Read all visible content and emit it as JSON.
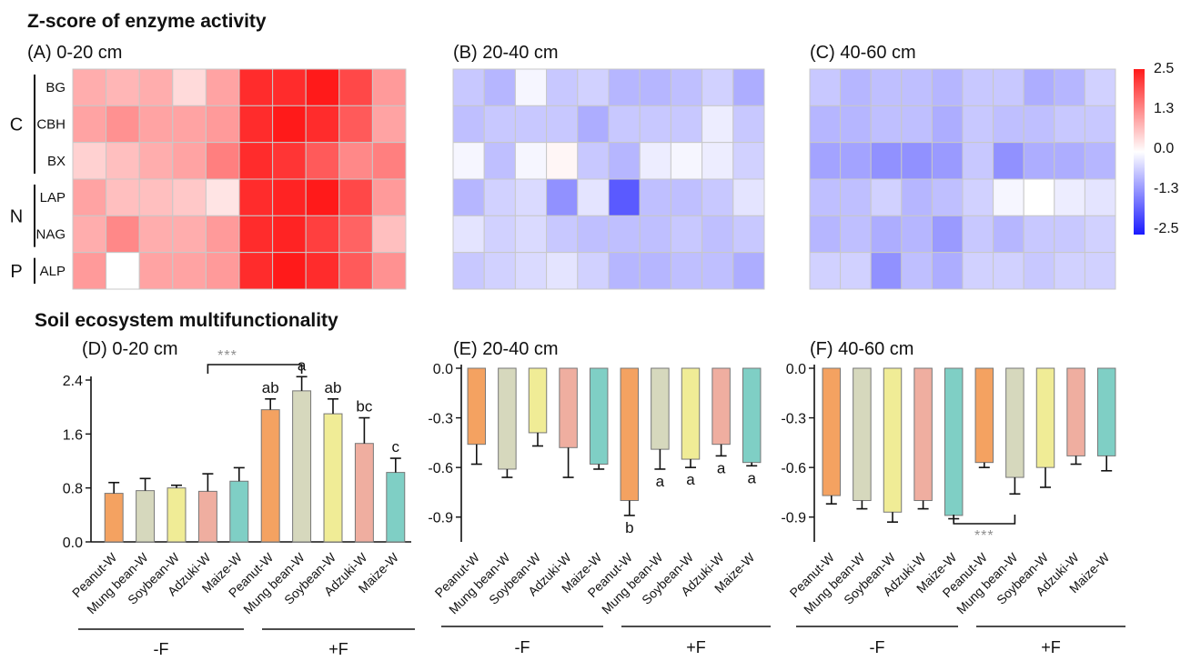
{
  "titles": {
    "enzyme_section": "Z-score of enzyme activity",
    "multi_section": "Soil ecosystem multifunctionality"
  },
  "panels": {
    "A": "(A) 0-20 cm",
    "B": "(B) 20-40 cm",
    "C": "(C) 40-60 cm",
    "D": "(D) 0-20 cm",
    "E": "(E) 20-40 cm",
    "F": "(F) 40-60 cm"
  },
  "enzymes": [
    "BG",
    "CBH",
    "BX",
    "LAP",
    "NAG",
    "ALP"
  ],
  "nutrient_groups": [
    {
      "label": "C",
      "rows": [
        0,
        2
      ]
    },
    {
      "label": "N",
      "rows": [
        3,
        4
      ]
    },
    {
      "label": "P",
      "rows": [
        5,
        5
      ]
    }
  ],
  "categories": [
    "Peanut-W",
    "Mung bean-W",
    "Soybean-W",
    "Adzuki-W",
    "Maize-W",
    "Peanut-W",
    "Mung bean-W",
    "Soybean-W",
    "Adzuki-W",
    "Maize-W"
  ],
  "treatment_groups": [
    "-F",
    "+F"
  ],
  "colors": {
    "crop": [
      "#f4a261",
      "#d6d8bd",
      "#f0ec96",
      "#efaea0",
      "#7fcfc5"
    ],
    "heat_low": "#1a1aff",
    "heat_mid": "#ffffff",
    "heat_high": "#ff1a1a"
  },
  "colorbar": {
    "ticks": [
      "2.5",
      "1.3",
      "0.0",
      "-1.3",
      "-2.5"
    ],
    "range": [
      -2.5,
      2.5
    ]
  },
  "chart_data": [
    {
      "type": "heatmap",
      "panel": "A",
      "rows": [
        "BG",
        "CBH",
        "BX",
        "LAP",
        "NAG",
        "ALP"
      ],
      "values": [
        [
          0.9,
          0.8,
          0.9,
          0.4,
          1.0,
          2.3,
          2.3,
          2.5,
          2.0,
          1.1
        ],
        [
          1.0,
          1.2,
          1.0,
          1.0,
          1.1,
          2.3,
          2.5,
          2.3,
          1.8,
          1.0
        ],
        [
          0.5,
          0.7,
          0.9,
          1.0,
          1.4,
          2.3,
          2.2,
          1.8,
          1.3,
          1.4
        ],
        [
          1.0,
          0.7,
          0.7,
          0.6,
          0.3,
          2.3,
          2.4,
          2.5,
          2.0,
          1.1
        ],
        [
          0.9,
          1.3,
          0.9,
          0.9,
          1.1,
          2.3,
          2.4,
          2.1,
          1.7,
          0.7
        ],
        [
          1.1,
          0.0,
          1.0,
          1.0,
          1.1,
          2.3,
          2.5,
          2.3,
          1.8,
          1.2
        ]
      ]
    },
    {
      "type": "heatmap",
      "panel": "B",
      "rows": [
        "BG",
        "CBH",
        "BX",
        "LAP",
        "NAG",
        "ALP"
      ],
      "values": [
        [
          -0.6,
          -0.8,
          -0.1,
          -0.6,
          -0.5,
          -0.8,
          -0.8,
          -0.7,
          -0.5,
          -0.9
        ],
        [
          -0.7,
          -0.6,
          -0.6,
          -0.6,
          -0.9,
          -0.6,
          -0.6,
          -0.6,
          -0.2,
          -0.6
        ],
        [
          -0.1,
          -0.7,
          -0.1,
          0.1,
          -0.6,
          -0.8,
          -0.2,
          -0.1,
          -0.2,
          -0.5
        ],
        [
          -0.8,
          -0.5,
          -0.4,
          -1.2,
          -0.3,
          -1.8,
          -0.7,
          -0.7,
          -0.6,
          -0.3
        ],
        [
          -0.3,
          -0.5,
          -0.4,
          -0.6,
          -0.7,
          -0.7,
          -0.7,
          -0.6,
          -0.7,
          -0.6
        ],
        [
          -0.6,
          -0.5,
          -0.4,
          -0.3,
          -0.5,
          -0.8,
          -0.8,
          -0.7,
          -0.7,
          -0.9
        ]
      ]
    },
    {
      "type": "heatmap",
      "panel": "C",
      "rows": [
        "BG",
        "CBH",
        "BX",
        "LAP",
        "NAG",
        "ALP"
      ],
      "values": [
        [
          -0.6,
          -0.8,
          -0.7,
          -0.7,
          -0.8,
          -0.6,
          -0.6,
          -0.9,
          -0.8,
          -0.5
        ],
        [
          -0.8,
          -0.8,
          -0.7,
          -0.7,
          -0.9,
          -0.6,
          -0.7,
          -0.7,
          -0.6,
          -0.6
        ],
        [
          -1.0,
          -1.0,
          -1.2,
          -1.2,
          -1.1,
          -0.6,
          -1.2,
          -0.9,
          -0.9,
          -0.8
        ],
        [
          -0.7,
          -0.7,
          -0.5,
          -0.8,
          -0.7,
          -0.5,
          -0.1,
          0.0,
          -0.2,
          -0.3
        ],
        [
          -0.8,
          -0.7,
          -0.9,
          -0.8,
          -1.1,
          -0.6,
          -0.8,
          -0.6,
          -0.6,
          -0.5
        ],
        [
          -0.5,
          -0.5,
          -1.2,
          -0.7,
          -0.9,
          -0.5,
          -0.5,
          -0.6,
          -0.5,
          -0.5
        ]
      ]
    },
    {
      "type": "bar",
      "panel": "D",
      "values": [
        0.72,
        0.76,
        0.8,
        0.75,
        0.9,
        1.96,
        2.24,
        1.9,
        1.46,
        1.03
      ],
      "errors": [
        0.16,
        0.18,
        0.04,
        0.26,
        0.2,
        0.16,
        0.21,
        0.22,
        0.38,
        0.21
      ],
      "letters": [
        "",
        "",
        "",
        "",
        "",
        "ab",
        "a",
        "ab",
        "bc",
        "c"
      ],
      "significance": {
        "from": 3,
        "to": 6,
        "label": "***"
      },
      "yticks": [
        "0.0",
        "0.8",
        "1.6",
        "2.4"
      ],
      "ylim": [
        0,
        2.4
      ]
    },
    {
      "type": "bar",
      "panel": "E",
      "values": [
        -0.46,
        -0.61,
        -0.39,
        -0.48,
        -0.58,
        -0.8,
        -0.49,
        -0.55,
        -0.46,
        -0.57
      ],
      "errors": [
        0.12,
        0.05,
        0.08,
        0.18,
        0.03,
        0.09,
        0.12,
        0.05,
        0.07,
        0.02
      ],
      "letters": [
        "",
        "",
        "",
        "",
        "",
        "b",
        "a",
        "a",
        "a",
        "a"
      ],
      "yticks": [
        "0.0",
        "-0.3",
        "-0.6",
        "-0.9"
      ],
      "ylim": [
        -1.05,
        0
      ]
    },
    {
      "type": "bar",
      "panel": "F",
      "values": [
        -0.77,
        -0.8,
        -0.87,
        -0.8,
        -0.89,
        -0.57,
        -0.66,
        -0.6,
        -0.53,
        -0.53
      ],
      "errors": [
        0.05,
        0.05,
        0.06,
        0.05,
        0.02,
        0.03,
        0.1,
        0.12,
        0.05,
        0.09
      ],
      "letters": [
        "",
        "",
        "",
        "",
        "",
        "",
        "",
        "",
        "",
        ""
      ],
      "significance": {
        "from": 4,
        "to": 6,
        "label": "***"
      },
      "yticks": [
        "0.0",
        "-0.3",
        "-0.6",
        "-0.9"
      ],
      "ylim": [
        -1.05,
        0
      ]
    }
  ]
}
